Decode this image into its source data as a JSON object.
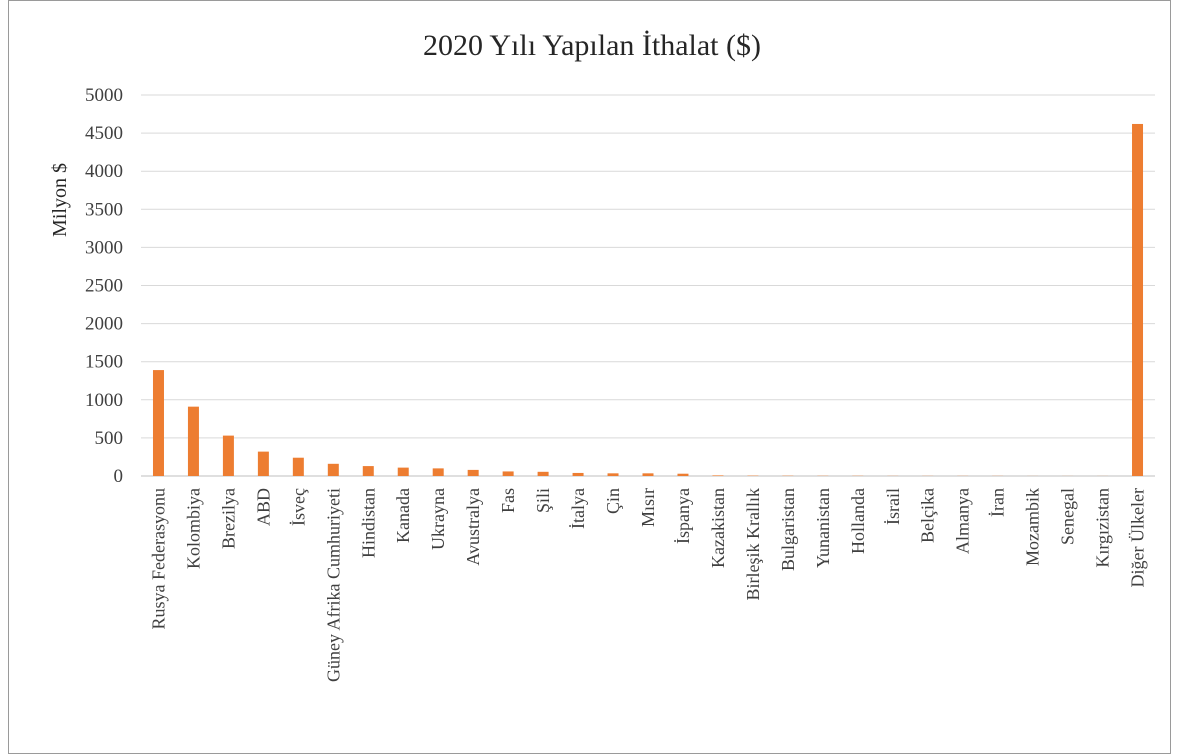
{
  "chart_data": {
    "type": "bar",
    "title": "2020 Yılı Yapılan İthalat  ($)",
    "xlabel": "",
    "ylabel": "Milyon $",
    "ylim": [
      0,
      5000
    ],
    "yticks": [
      0,
      500,
      1000,
      1500,
      2000,
      2500,
      3000,
      3500,
      4000,
      4500,
      5000
    ],
    "grid": true,
    "legend": "none",
    "bar_color": "#ED7D31",
    "categories": [
      "Rusya Federasyonu",
      "Kolombiya",
      "Brezilya",
      "ABD",
      "İsveç",
      "Güney Afrika Cumhuriyeti",
      "Hindistan",
      "Kanada",
      "Ukrayna",
      "Avustralya",
      "Fas",
      "Şili",
      "İtalya",
      "Çin",
      "Mısır",
      "İspanya",
      "Kazakistan",
      "Birleşik Krallık",
      "Bulgaristan",
      "Yunanistan",
      "Hollanda",
      "İsrail",
      "Belçika",
      "Almanya",
      "İran",
      "Mozambik",
      "Senegal",
      "Kırgızistan",
      "Diğer Ülkeler"
    ],
    "values": [
      1390,
      910,
      530,
      320,
      240,
      160,
      130,
      110,
      100,
      80,
      60,
      55,
      40,
      35,
      35,
      30,
      8,
      5,
      4,
      3,
      3,
      2,
      2,
      2,
      2,
      1,
      1,
      1,
      4620
    ]
  }
}
